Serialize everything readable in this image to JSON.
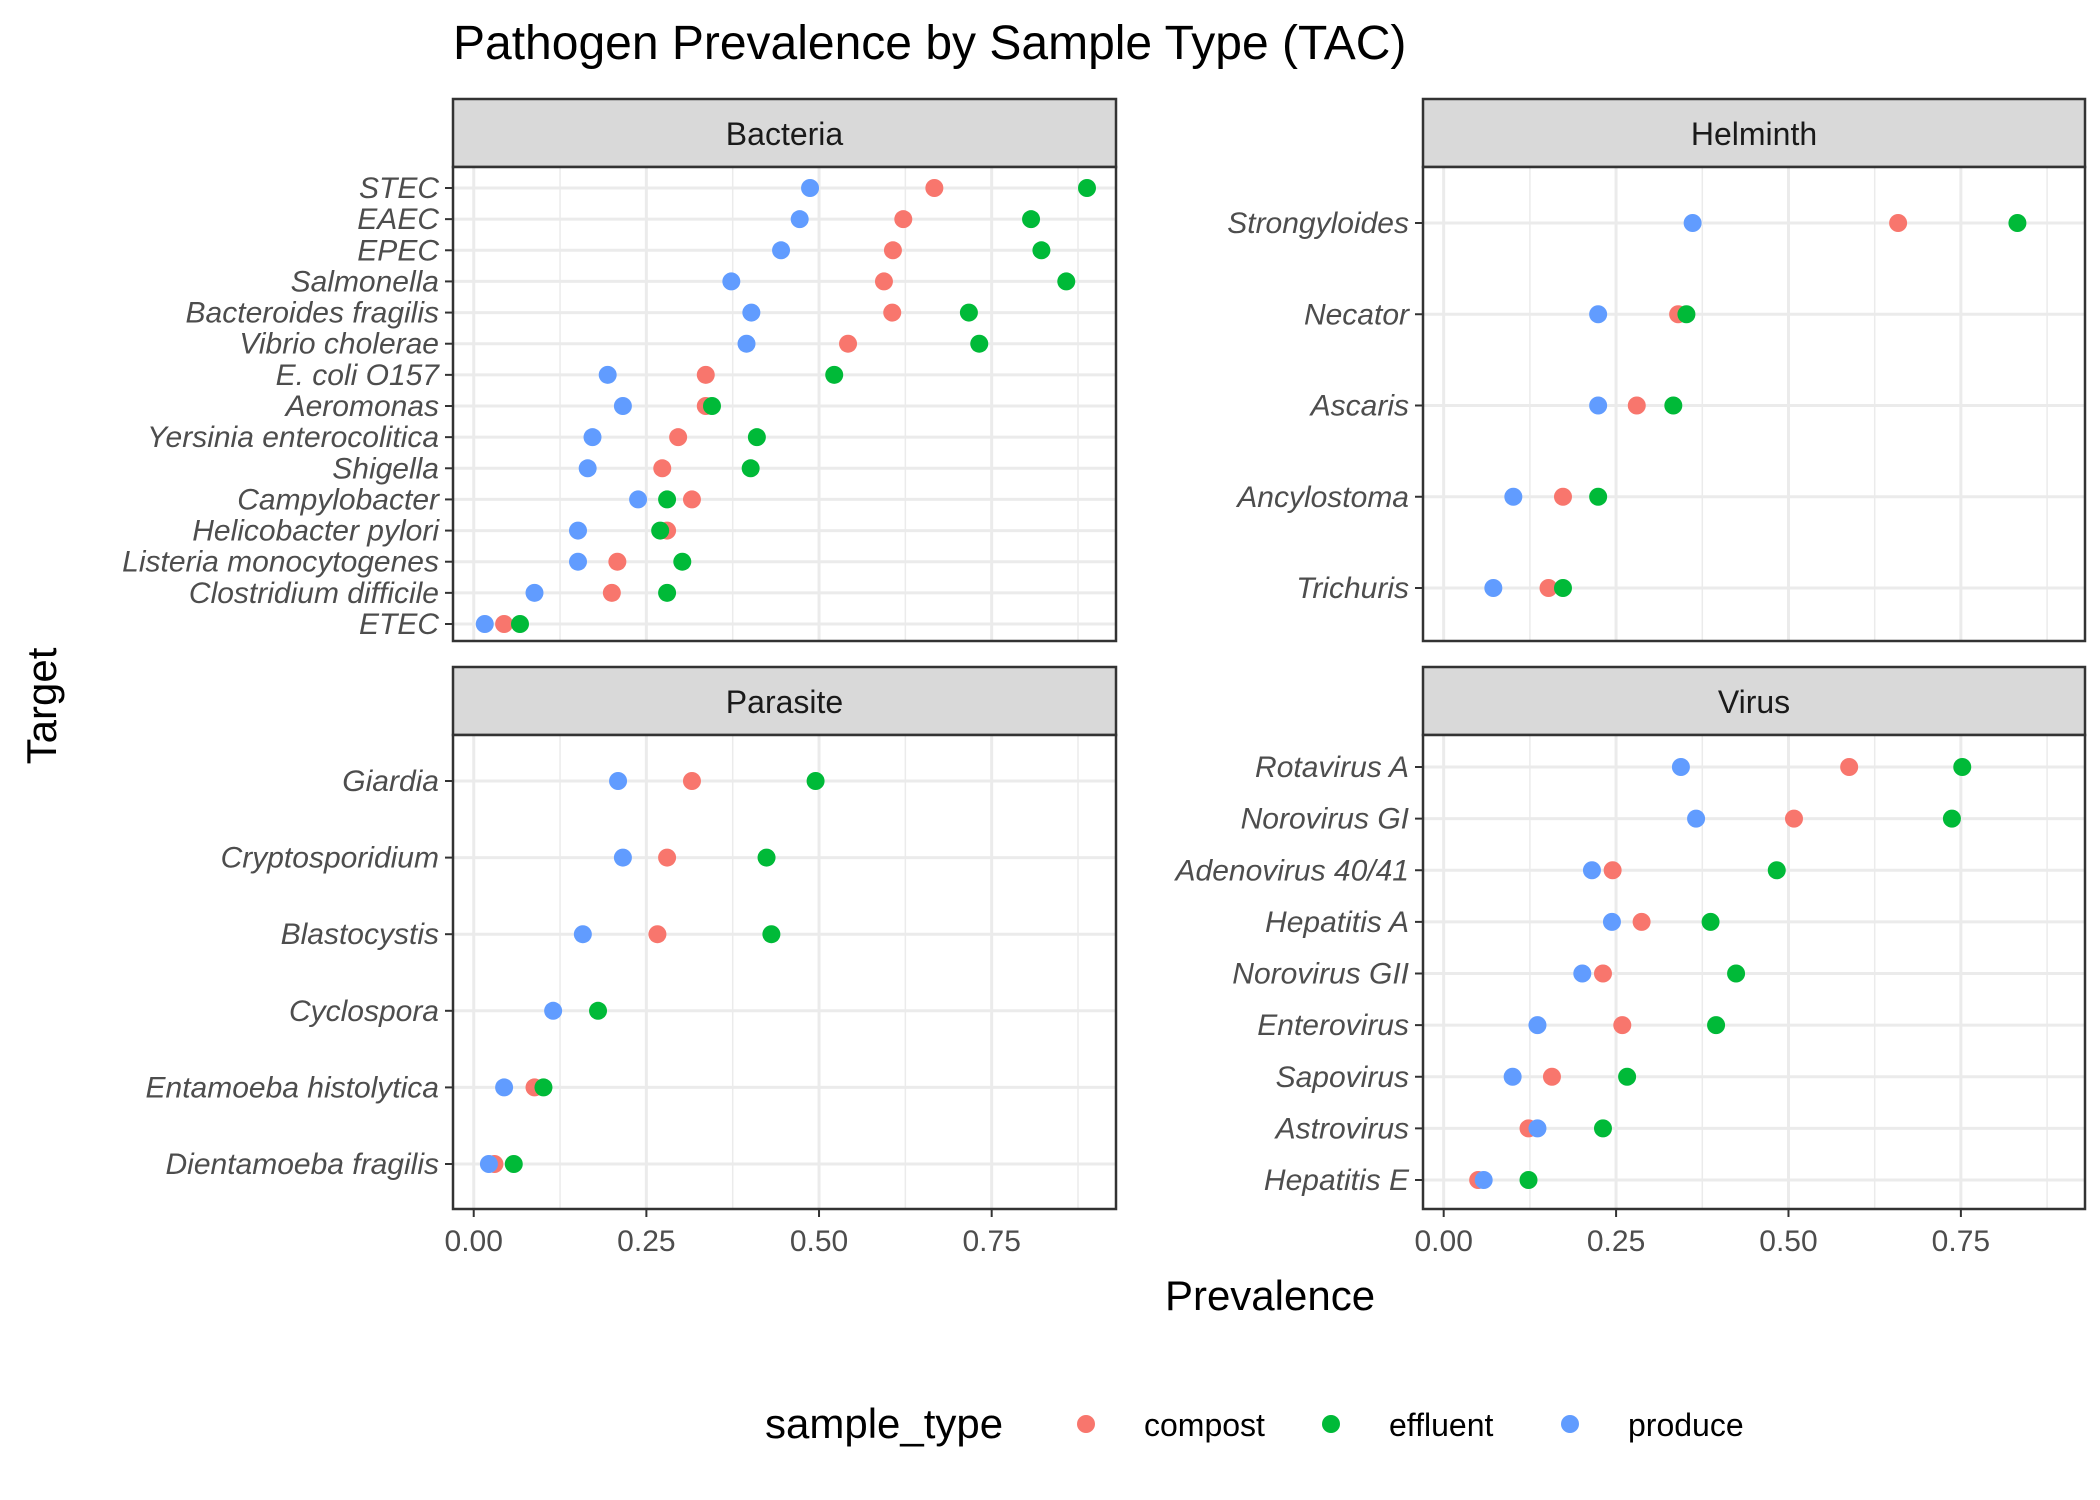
{
  "chart_data": {
    "type": "scatter",
    "title": "Pathogen Prevalence by Sample Type (TAC)",
    "xlabel": "Prevalence",
    "ylabel": "Target",
    "xlim": [
      -0.03,
      0.93
    ],
    "x_ticks": [
      0.0,
      0.25,
      0.5,
      0.75
    ],
    "x_tick_labels": [
      "0.00",
      "0.25",
      "0.50",
      "0.75"
    ],
    "grid": true,
    "legend": {
      "title": "sample_type",
      "position": "bottom",
      "entries": [
        {
          "name": "compost",
          "color": "#F8766D"
        },
        {
          "name": "effluent",
          "color": "#00BA38"
        },
        {
          "name": "produce",
          "color": "#619CFF"
        }
      ]
    },
    "panels": [
      {
        "name": "Bacteria",
        "categories": [
          "STEC",
          "EAEC",
          "EPEC",
          "Salmonella",
          "Bacteroides fragilis",
          "Vibrio cholerae",
          "E. coli O157",
          "Aeromonas",
          "Yersinia enterocolitica",
          "Shigella",
          "Campylobacter",
          "Helicobacter pylori",
          "Listeria monocytogenes",
          "Clostridium difficile",
          "ETEC"
        ],
        "series": [
          {
            "name": "compost",
            "values": [
              0.667,
              0.622,
              0.607,
              0.594,
              0.606,
              0.542,
              0.336,
              0.336,
              0.296,
              0.273,
              0.316,
              0.28,
              0.208,
              0.2,
              0.044
            ]
          },
          {
            "name": "effluent",
            "values": [
              0.888,
              0.807,
              0.822,
              0.858,
              0.717,
              0.732,
              0.522,
              0.345,
              0.41,
              0.401,
              0.28,
              0.27,
              0.302,
              0.28,
              0.067
            ]
          },
          {
            "name": "produce",
            "values": [
              0.487,
              0.472,
              0.445,
              0.373,
              0.402,
              0.395,
              0.194,
              0.216,
              0.172,
              0.165,
              0.238,
              0.151,
              0.151,
              0.088,
              0.016
            ]
          }
        ]
      },
      {
        "name": "Helminth",
        "categories": [
          "Strongyloides",
          "Necator",
          "Ascaris",
          "Ancylostoma",
          "Trichuris"
        ],
        "series": [
          {
            "name": "compost",
            "values": [
              0.659,
              0.34,
              0.28,
              0.173,
              0.152
            ]
          },
          {
            "name": "effluent",
            "values": [
              0.832,
              0.352,
              0.333,
              0.224,
              0.173
            ]
          },
          {
            "name": "produce",
            "values": [
              0.361,
              0.224,
              0.224,
              0.101,
              0.072
            ]
          }
        ]
      },
      {
        "name": "Parasite",
        "categories": [
          "Giardia",
          "Cryptosporidium",
          "Blastocystis",
          "Cyclospora",
          "Entamoeba histolytica",
          "Dientamoeba fragilis"
        ],
        "series": [
          {
            "name": "compost",
            "values": [
              0.316,
              0.28,
              0.266,
              null,
              0.088,
              0.03
            ]
          },
          {
            "name": "effluent",
            "values": [
              0.495,
              0.424,
              0.431,
              0.18,
              0.101,
              0.058
            ]
          },
          {
            "name": "produce",
            "values": [
              0.209,
              0.216,
              0.158,
              0.115,
              0.044,
              0.022
            ]
          }
        ]
      },
      {
        "name": "Virus",
        "categories": [
          "Rotavirus A",
          "Norovirus GI",
          "Adenovirus 40/41",
          "Hepatitis A",
          "Norovirus GII",
          "Enterovirus",
          "Sapovirus",
          "Astrovirus",
          "Hepatitis E"
        ],
        "series": [
          {
            "name": "compost",
            "values": [
              0.588,
              0.508,
              0.245,
              0.287,
              0.231,
              0.259,
              0.157,
              0.123,
              0.05
            ]
          },
          {
            "name": "effluent",
            "values": [
              0.752,
              0.737,
              0.483,
              0.387,
              0.424,
              0.395,
              0.266,
              0.231,
              0.123
            ]
          },
          {
            "name": "produce",
            "values": [
              0.344,
              0.366,
              0.215,
              0.244,
              0.201,
              0.136,
              0.1,
              0.136,
              0.058
            ]
          }
        ]
      }
    ]
  }
}
